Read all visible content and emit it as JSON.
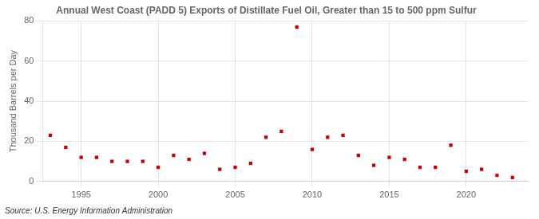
{
  "chart_data": {
    "type": "scatter",
    "title": "Annual West Coast (PADD 5) Exports of Distillate Fuel Oil, Greater than 15 to 500 ppm Sulfur",
    "y_label": "Thousand Barrels per Day",
    "source": "Source: U.S. Energy Information Administration",
    "x": [
      1993,
      1994,
      1995,
      1996,
      1997,
      1998,
      1999,
      2000,
      2001,
      2002,
      2003,
      2004,
      2005,
      2006,
      2007,
      2008,
      2009,
      2010,
      2011,
      2012,
      2013,
      2014,
      2015,
      2016,
      2017,
      2018,
      2019,
      2020,
      2021,
      2022,
      2023
    ],
    "values": [
      23,
      17,
      12,
      12,
      10,
      10,
      10,
      7,
      13,
      11,
      14,
      6,
      7,
      9,
      22,
      25,
      77,
      16,
      22,
      23,
      13,
      8,
      12,
      11,
      7,
      7,
      18,
      5,
      6,
      3,
      2
    ],
    "color": "#cc0000",
    "marker": "square",
    "xlim": [
      1992.5,
      2024
    ],
    "xticks": [
      1995,
      2000,
      2005,
      2010,
      2015,
      2020
    ],
    "ylim": [
      0,
      80
    ],
    "yticks": [
      0,
      20,
      40,
      60,
      80
    ],
    "grid": true
  }
}
